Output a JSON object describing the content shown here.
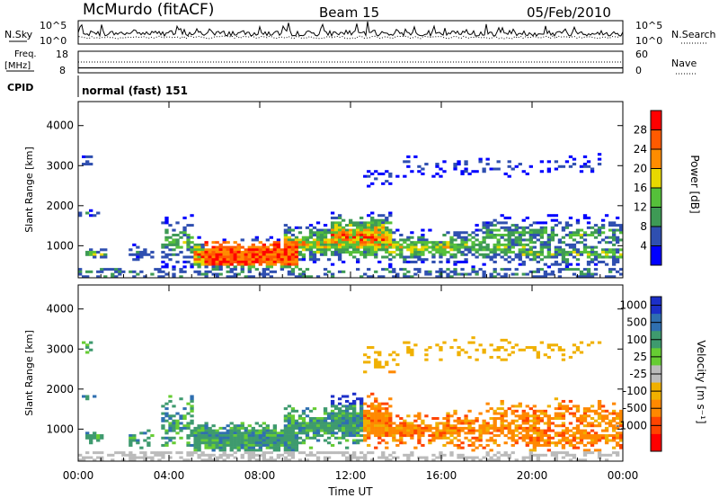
{
  "header": {
    "station": "McMurdo (fitACF)",
    "beam": "Beam 15",
    "date": "05/Feb/2010"
  },
  "panel_labels": {
    "nsky": "N.Sky",
    "nsearch": "N.Search",
    "freq": "Freq.",
    "freq_unit": "[MHz]",
    "nave": "Nave",
    "cpid": "CPID",
    "cpid_value": "normal (fast) 151"
  },
  "chart_data": [
    {
      "type": "line",
      "name": "noise-panel",
      "left_ticks": [
        "10^5",
        "10^0"
      ],
      "right_ticks": [
        "10^5",
        "10^0"
      ],
      "series": [
        {
          "name": "N.Sky",
          "style": "solid"
        },
        {
          "name": "N.Search",
          "style": "dotted"
        }
      ]
    },
    {
      "type": "line",
      "name": "frequency-panel",
      "left_ticks": [
        18,
        8
      ],
      "right_ticks": [
        60,
        0
      ],
      "series": [
        {
          "name": "Freq.",
          "style": "solid",
          "value": 10.3
        },
        {
          "name": "Nave",
          "style": "dotted",
          "value": 30
        }
      ]
    },
    {
      "type": "heatmap",
      "name": "power-panel",
      "ylabel": "Slant Range [km]",
      "ylim": [
        200,
        4600
      ],
      "yticks": [
        1000,
        2000,
        3000,
        4000
      ],
      "colorbar": {
        "label": "Power [dB]",
        "ticks": [
          4,
          8,
          12,
          16,
          20,
          24,
          28
        ],
        "colors": [
          "#0000ff",
          "#2f4fb0",
          "#3e9a55",
          "#55c03a",
          "#e8d800",
          "#ff8c00",
          "#ff5a00",
          "#ff0000"
        ]
      }
    },
    {
      "type": "heatmap",
      "name": "velocity-panel",
      "ylabel": "Slant Range [km]",
      "ylim": [
        200,
        4600
      ],
      "yticks": [
        1000,
        2000,
        3000,
        4000
      ],
      "colorbar": {
        "label": "Velocity [m s⁻¹]",
        "ticks": [
          1000,
          500,
          100,
          25,
          -25,
          -100,
          -500,
          -1000
        ],
        "colors": [
          "#1c2fc8",
          "#2f6fb0",
          "#3e9a6e",
          "#66cc33",
          "#bbbbbb",
          "#f0b000",
          "#ff8800",
          "#ff4400",
          "#ff0000"
        ]
      },
      "xlabel": "Time UT",
      "xticks": [
        "00:00",
        "04:00",
        "08:00",
        "12:00",
        "16:00",
        "20:00",
        "00:00"
      ]
    }
  ]
}
